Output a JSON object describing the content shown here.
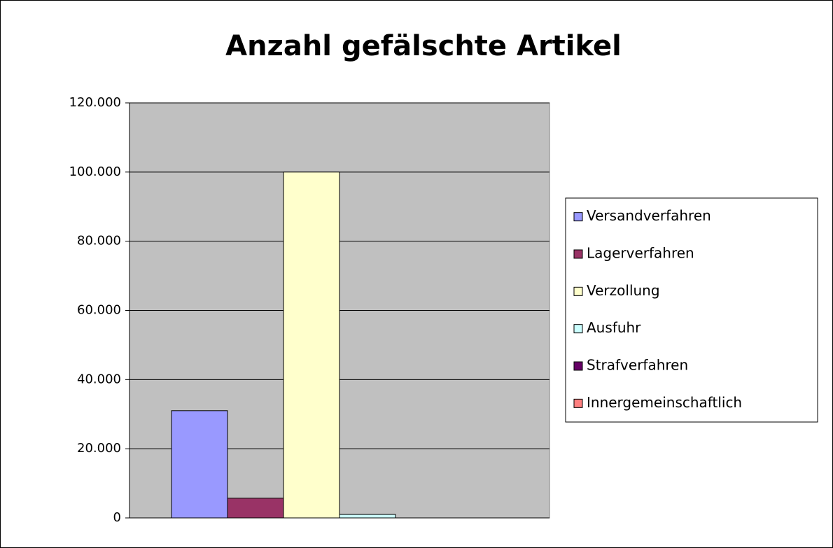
{
  "chart_data": {
    "type": "bar",
    "title": "Anzahl gefälschte Artikel",
    "categories": [
      null
    ],
    "series": [
      {
        "name": "Versandverfahren",
        "color": "#9999ff",
        "values": [
          31000
        ]
      },
      {
        "name": "Lagerverfahren",
        "color": "#993366",
        "values": [
          5700
        ]
      },
      {
        "name": "Verzollung",
        "color": "#ffffcc",
        "values": [
          100000
        ]
      },
      {
        "name": "Ausfuhr",
        "color": "#ccffff",
        "values": [
          1000
        ]
      },
      {
        "name": "Strafverfahren",
        "color": "#660066",
        "values": [
          0
        ]
      },
      {
        "name": "Innergemeinschaftlich",
        "color": "#ff8080",
        "values": [
          0
        ]
      }
    ],
    "ylim": [
      0,
      120000
    ],
    "yticks": [
      0,
      {
        "value": 20000,
        "label": "20.000"
      },
      {
        "value": 40000,
        "label": "40.000"
      },
      {
        "value": 60000,
        "label": "60.000"
      },
      {
        "value": 80000,
        "label": "80.000"
      },
      {
        "value": 100000,
        "label": "100.000"
      },
      {
        "value": 120000,
        "label": "120.000"
      }
    ],
    "grid": true,
    "legend": "right",
    "plot_background": "#c0c0c0"
  }
}
